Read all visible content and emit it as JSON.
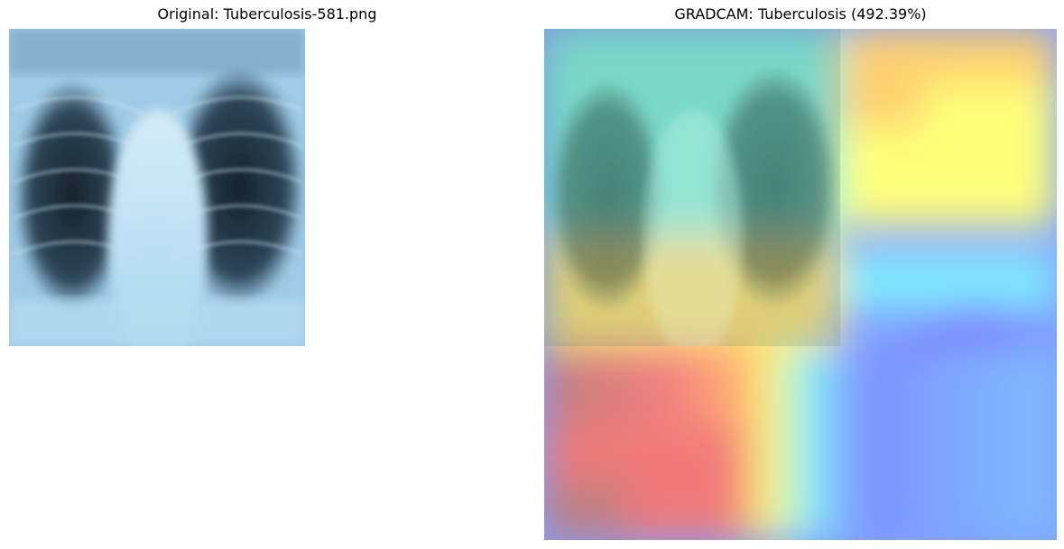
{
  "panels": {
    "left": {
      "title": "Original: Tuberculosis-581.png"
    },
    "right": {
      "title": "GRADCAM: Tuberculosis (492.39%)"
    }
  },
  "colors": {
    "xray_bright": "#b8dcef",
    "xray_dark": "#1c2a36",
    "heat_red": "#ff6f6f",
    "heat_yellow": "#ffff70",
    "heat_cyan": "#7ff7ff",
    "heat_blue": "#7f7fff"
  }
}
